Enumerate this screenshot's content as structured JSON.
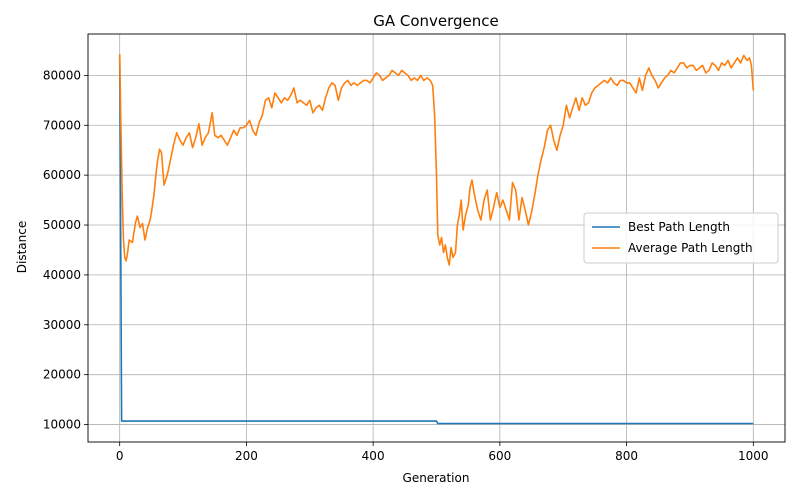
{
  "chart_data": {
    "type": "line",
    "title": "GA Convergence",
    "xlabel": "Generation",
    "ylabel": "Distance",
    "xlim": [
      -50,
      1050
    ],
    "ylim": [
      6500,
      88300
    ],
    "xticks": [
      0,
      200,
      400,
      600,
      800,
      1000
    ],
    "yticks": [
      10000,
      20000,
      30000,
      40000,
      50000,
      60000,
      70000,
      80000
    ],
    "grid": true,
    "legend_position": "right",
    "series": [
      {
        "name": "Best Path Length",
        "color": "#1f77b4",
        "points": [
          [
            0,
            84000
          ],
          [
            2,
            40000
          ],
          [
            3,
            10700
          ],
          [
            500,
            10700
          ],
          [
            502,
            10200
          ],
          [
            1000,
            10200
          ]
        ]
      },
      {
        "name": "Average Path Length",
        "color": "#ff7f0e",
        "points": [
          [
            0,
            84300
          ],
          [
            2,
            70000
          ],
          [
            4,
            56000
          ],
          [
            6,
            47000
          ],
          [
            8,
            43500
          ],
          [
            10,
            42800
          ],
          [
            12,
            44000
          ],
          [
            15,
            47000
          ],
          [
            20,
            46500
          ],
          [
            25,
            50500
          ],
          [
            28,
            51800
          ],
          [
            32,
            49500
          ],
          [
            36,
            50300
          ],
          [
            40,
            47000
          ],
          [
            44,
            49500
          ],
          [
            48,
            51000
          ],
          [
            50,
            52500
          ],
          [
            54,
            56000
          ],
          [
            58,
            61000
          ],
          [
            60,
            63000
          ],
          [
            63,
            65200
          ],
          [
            66,
            64500
          ],
          [
            70,
            58000
          ],
          [
            75,
            60000
          ],
          [
            80,
            63000
          ],
          [
            85,
            66000
          ],
          [
            90,
            68500
          ],
          [
            95,
            67000
          ],
          [
            100,
            66000
          ],
          [
            105,
            67500
          ],
          [
            110,
            68500
          ],
          [
            115,
            65500
          ],
          [
            120,
            67500
          ],
          [
            125,
            70300
          ],
          [
            130,
            66000
          ],
          [
            135,
            67500
          ],
          [
            140,
            68500
          ],
          [
            146,
            72500
          ],
          [
            150,
            68000
          ],
          [
            155,
            67500
          ],
          [
            160,
            68000
          ],
          [
            165,
            67000
          ],
          [
            170,
            66000
          ],
          [
            175,
            67500
          ],
          [
            180,
            69000
          ],
          [
            185,
            68000
          ],
          [
            190,
            69500
          ],
          [
            195,
            69500
          ],
          [
            200,
            70000
          ],
          [
            205,
            71000
          ],
          [
            210,
            69000
          ],
          [
            215,
            68000
          ],
          [
            220,
            70500
          ],
          [
            225,
            72000
          ],
          [
            230,
            75000
          ],
          [
            235,
            75500
          ],
          [
            240,
            73500
          ],
          [
            245,
            76500
          ],
          [
            250,
            75500
          ],
          [
            255,
            74500
          ],
          [
            260,
            75500
          ],
          [
            265,
            75000
          ],
          [
            270,
            76000
          ],
          [
            275,
            77500
          ],
          [
            280,
            74500
          ],
          [
            285,
            75000
          ],
          [
            290,
            74500
          ],
          [
            295,
            74000
          ],
          [
            300,
            75000
          ],
          [
            305,
            72500
          ],
          [
            310,
            73500
          ],
          [
            315,
            74000
          ],
          [
            320,
            73000
          ],
          [
            325,
            75500
          ],
          [
            330,
            77500
          ],
          [
            335,
            78500
          ],
          [
            340,
            78000
          ],
          [
            345,
            75000
          ],
          [
            350,
            77500
          ],
          [
            355,
            78500
          ],
          [
            360,
            79000
          ],
          [
            365,
            78000
          ],
          [
            370,
            78500
          ],
          [
            375,
            78000
          ],
          [
            380,
            78500
          ],
          [
            385,
            79000
          ],
          [
            390,
            79000
          ],
          [
            395,
            78500
          ],
          [
            400,
            79500
          ],
          [
            405,
            80500
          ],
          [
            410,
            80000
          ],
          [
            415,
            79000
          ],
          [
            420,
            79500
          ],
          [
            425,
            80000
          ],
          [
            430,
            81000
          ],
          [
            435,
            80500
          ],
          [
            440,
            80000
          ],
          [
            445,
            81000
          ],
          [
            450,
            80500
          ],
          [
            455,
            80000
          ],
          [
            460,
            79000
          ],
          [
            465,
            79500
          ],
          [
            470,
            79000
          ],
          [
            475,
            80000
          ],
          [
            480,
            79000
          ],
          [
            485,
            79500
          ],
          [
            490,
            79000
          ],
          [
            494,
            78000
          ],
          [
            497,
            72000
          ],
          [
            500,
            60000
          ],
          [
            502,
            48000
          ],
          [
            505,
            46000
          ],
          [
            508,
            47500
          ],
          [
            511,
            44500
          ],
          [
            514,
            46000
          ],
          [
            517,
            43500
          ],
          [
            520,
            42000
          ],
          [
            523,
            45500
          ],
          [
            526,
            43500
          ],
          [
            530,
            44500
          ],
          [
            533,
            50000
          ],
          [
            536,
            52000
          ],
          [
            539,
            55000
          ],
          [
            542,
            49000
          ],
          [
            546,
            52000
          ],
          [
            550,
            54000
          ],
          [
            553,
            57500
          ],
          [
            556,
            59000
          ],
          [
            560,
            56000
          ],
          [
            565,
            53000
          ],
          [
            570,
            51000
          ],
          [
            575,
            55000
          ],
          [
            580,
            57000
          ],
          [
            585,
            51000
          ],
          [
            590,
            53500
          ],
          [
            595,
            56500
          ],
          [
            600,
            53500
          ],
          [
            605,
            55000
          ],
          [
            610,
            53000
          ],
          [
            615,
            51000
          ],
          [
            620,
            58500
          ],
          [
            625,
            57000
          ],
          [
            630,
            51000
          ],
          [
            635,
            55500
          ],
          [
            640,
            53000
          ],
          [
            645,
            50000
          ],
          [
            650,
            52500
          ],
          [
            655,
            56000
          ],
          [
            660,
            60000
          ],
          [
            665,
            63000
          ],
          [
            670,
            65500
          ],
          [
            675,
            69000
          ],
          [
            680,
            70000
          ],
          [
            685,
            67000
          ],
          [
            690,
            65000
          ],
          [
            695,
            68000
          ],
          [
            700,
            70000
          ],
          [
            705,
            74000
          ],
          [
            710,
            71500
          ],
          [
            715,
            73500
          ],
          [
            720,
            75500
          ],
          [
            725,
            73000
          ],
          [
            730,
            75500
          ],
          [
            735,
            74000
          ],
          [
            740,
            74500
          ],
          [
            745,
            76500
          ],
          [
            750,
            77500
          ],
          [
            755,
            78000
          ],
          [
            760,
            78500
          ],
          [
            765,
            79000
          ],
          [
            770,
            78500
          ],
          [
            775,
            79500
          ],
          [
            780,
            78500
          ],
          [
            785,
            78000
          ],
          [
            790,
            79000
          ],
          [
            795,
            79000
          ],
          [
            800,
            78500
          ],
          [
            805,
            78500
          ],
          [
            810,
            77500
          ],
          [
            815,
            76500
          ],
          [
            820,
            79500
          ],
          [
            825,
            77000
          ],
          [
            830,
            80000
          ],
          [
            835,
            81500
          ],
          [
            840,
            80000
          ],
          [
            845,
            79000
          ],
          [
            850,
            77500
          ],
          [
            855,
            78500
          ],
          [
            860,
            79500
          ],
          [
            865,
            80000
          ],
          [
            870,
            81000
          ],
          [
            875,
            80500
          ],
          [
            880,
            81500
          ],
          [
            885,
            82500
          ],
          [
            890,
            82500
          ],
          [
            895,
            81500
          ],
          [
            900,
            82000
          ],
          [
            905,
            82000
          ],
          [
            910,
            81000
          ],
          [
            915,
            81500
          ],
          [
            920,
            82000
          ],
          [
            925,
            80500
          ],
          [
            930,
            81000
          ],
          [
            935,
            82500
          ],
          [
            940,
            82000
          ],
          [
            945,
            81000
          ],
          [
            950,
            82500
          ],
          [
            955,
            82000
          ],
          [
            960,
            83000
          ],
          [
            965,
            81500
          ],
          [
            970,
            82500
          ],
          [
            975,
            83500
          ],
          [
            980,
            82500
          ],
          [
            985,
            84000
          ],
          [
            990,
            83000
          ],
          [
            994,
            83500
          ],
          [
            997,
            82000
          ],
          [
            1000,
            77000
          ]
        ]
      }
    ]
  }
}
